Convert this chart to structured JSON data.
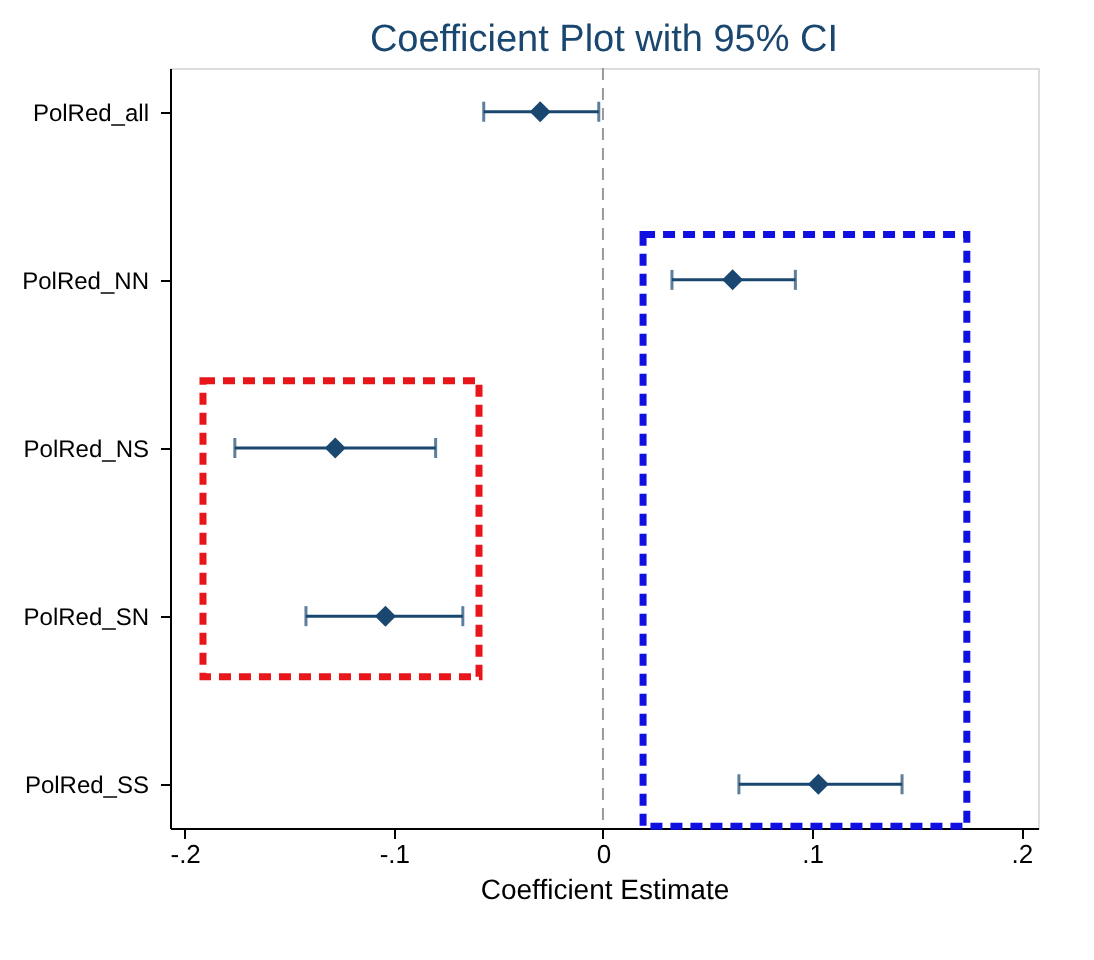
{
  "chart_data": {
    "type": "scatter",
    "orientation": "horizontal",
    "title": "Coefficient Plot with 95% CI",
    "xlabel": "Coefficient Estimate",
    "categories": [
      "PolRed_all",
      "PolRed_NN",
      "PolRed_NS",
      "PolRed_SN",
      "PolRed_SS"
    ],
    "series": [
      {
        "color": "#1a476f",
        "values": [
          -0.03,
          0.062,
          -0.128,
          -0.104,
          0.103
        ],
        "errors": [
          [
            -0.057,
            -0.002
          ],
          [
            0.033,
            0.092
          ],
          [
            -0.176,
            -0.08
          ],
          [
            -0.142,
            -0.067
          ],
          [
            0.065,
            0.143
          ]
        ]
      }
    ],
    "marker": "diamond",
    "xlim": [
      -0.207,
      0.208
    ],
    "xticks": [
      {
        "value": -0.2,
        "label": "-.2"
      },
      {
        "value": -0.1,
        "label": "-.1"
      },
      {
        "value": 0,
        "label": "0"
      },
      {
        "value": 0.1,
        "label": ".1"
      },
      {
        "value": 0.2,
        "label": ".2"
      }
    ],
    "ref_lines": [
      {
        "axis": "x",
        "value": 0,
        "color": "#999999",
        "line_style": "dashed"
      }
    ]
  }
}
